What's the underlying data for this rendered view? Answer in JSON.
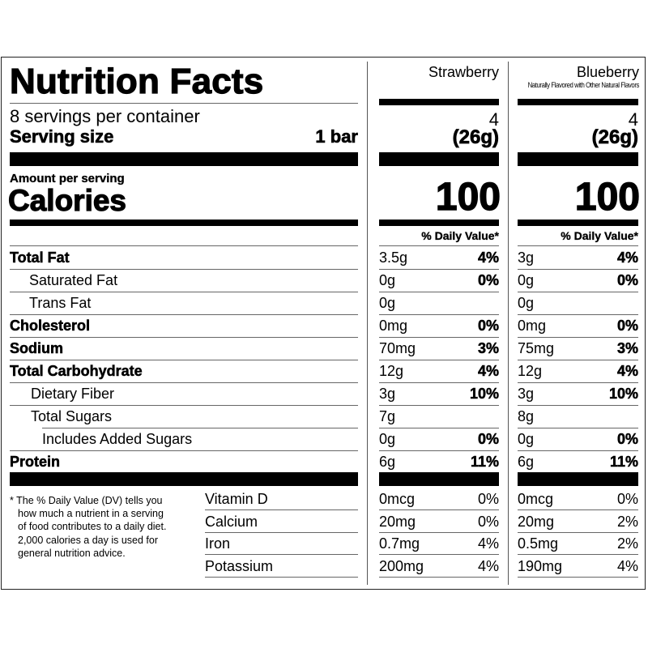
{
  "label": {
    "title": "Nutrition Facts",
    "servings_per_container": "8 servings per container",
    "serving_size_label": "Serving size",
    "serving_size_value": "1 bar",
    "amount_per_serving": "Amount per serving",
    "calories_label": "Calories",
    "daily_value_header": "% Daily Value*",
    "footnote": [
      "* The % Daily Value (DV) tells you",
      "how much a nutrient in a serving",
      "of food contributes to a daily diet.",
      "2,000 calories a day is used for",
      "general nutrition advice."
    ]
  },
  "flavors": [
    {
      "name": "Strawberry",
      "subtitle": "",
      "servings": "4",
      "serving_size": "(26g)",
      "calories": "100"
    },
    {
      "name": "Blueberry",
      "subtitle": "Naturally Flavored with Other Natural Flavors",
      "servings": "4",
      "serving_size": "(26g)",
      "calories": "100"
    }
  ],
  "nutrients": [
    {
      "label": "Total Fat",
      "bold": true,
      "indent": 0,
      "values": [
        {
          "amount": "3.5g",
          "dv": "4%"
        },
        {
          "amount": "3g",
          "dv": "4%"
        }
      ]
    },
    {
      "label": "Saturated Fat",
      "bold": false,
      "indent": 1,
      "values": [
        {
          "amount": "0g",
          "dv": "0%"
        },
        {
          "amount": "0g",
          "dv": "0%"
        }
      ]
    },
    {
      "label": "Trans Fat",
      "bold": false,
      "indent": 1,
      "values": [
        {
          "amount": "0g",
          "dv": ""
        },
        {
          "amount": "0g",
          "dv": ""
        }
      ]
    },
    {
      "label": "Cholesterol",
      "bold": true,
      "indent": 0,
      "values": [
        {
          "amount": "0mg",
          "dv": "0%"
        },
        {
          "amount": "0mg",
          "dv": "0%"
        }
      ]
    },
    {
      "label": "Sodium",
      "bold": true,
      "indent": 0,
      "values": [
        {
          "amount": "70mg",
          "dv": "3%"
        },
        {
          "amount": "75mg",
          "dv": "3%"
        }
      ]
    },
    {
      "label": "Total Carbohydrate",
      "bold": true,
      "indent": 0,
      "values": [
        {
          "amount": "12g",
          "dv": "4%"
        },
        {
          "amount": "12g",
          "dv": "4%"
        }
      ]
    },
    {
      "label": "Dietary Fiber",
      "bold": false,
      "indent": 1,
      "values": [
        {
          "amount": "3g",
          "dv": "10%"
        },
        {
          "amount": "3g",
          "dv": "10%"
        }
      ]
    },
    {
      "label": "Total Sugars",
      "bold": false,
      "indent": 1,
      "values": [
        {
          "amount": "7g",
          "dv": ""
        },
        {
          "amount": "8g",
          "dv": ""
        }
      ]
    },
    {
      "label": "Includes Added Sugars",
      "bold": false,
      "indent": 2,
      "values": [
        {
          "amount": "0g",
          "dv": "0%"
        },
        {
          "amount": "0g",
          "dv": "0%"
        }
      ]
    },
    {
      "label": "Protein",
      "bold": true,
      "indent": 0,
      "values": [
        {
          "amount": "6g",
          "dv": "11%"
        },
        {
          "amount": "6g",
          "dv": "11%"
        }
      ]
    }
  ],
  "micronutrients": [
    {
      "label": "Vitamin D",
      "values": [
        {
          "amount": "0mcg",
          "dv": "0%"
        },
        {
          "amount": "0mcg",
          "dv": "0%"
        }
      ]
    },
    {
      "label": "Calcium",
      "values": [
        {
          "amount": "20mg",
          "dv": "0%"
        },
        {
          "amount": "20mg",
          "dv": "2%"
        }
      ]
    },
    {
      "label": "Iron",
      "values": [
        {
          "amount": "0.7mg",
          "dv": "4%"
        },
        {
          "amount": "0.5mg",
          "dv": "2%"
        }
      ]
    },
    {
      "label": "Potassium",
      "values": [
        {
          "amount": "200mg",
          "dv": "4%"
        },
        {
          "amount": "190mg",
          "dv": "4%"
        }
      ]
    }
  ]
}
